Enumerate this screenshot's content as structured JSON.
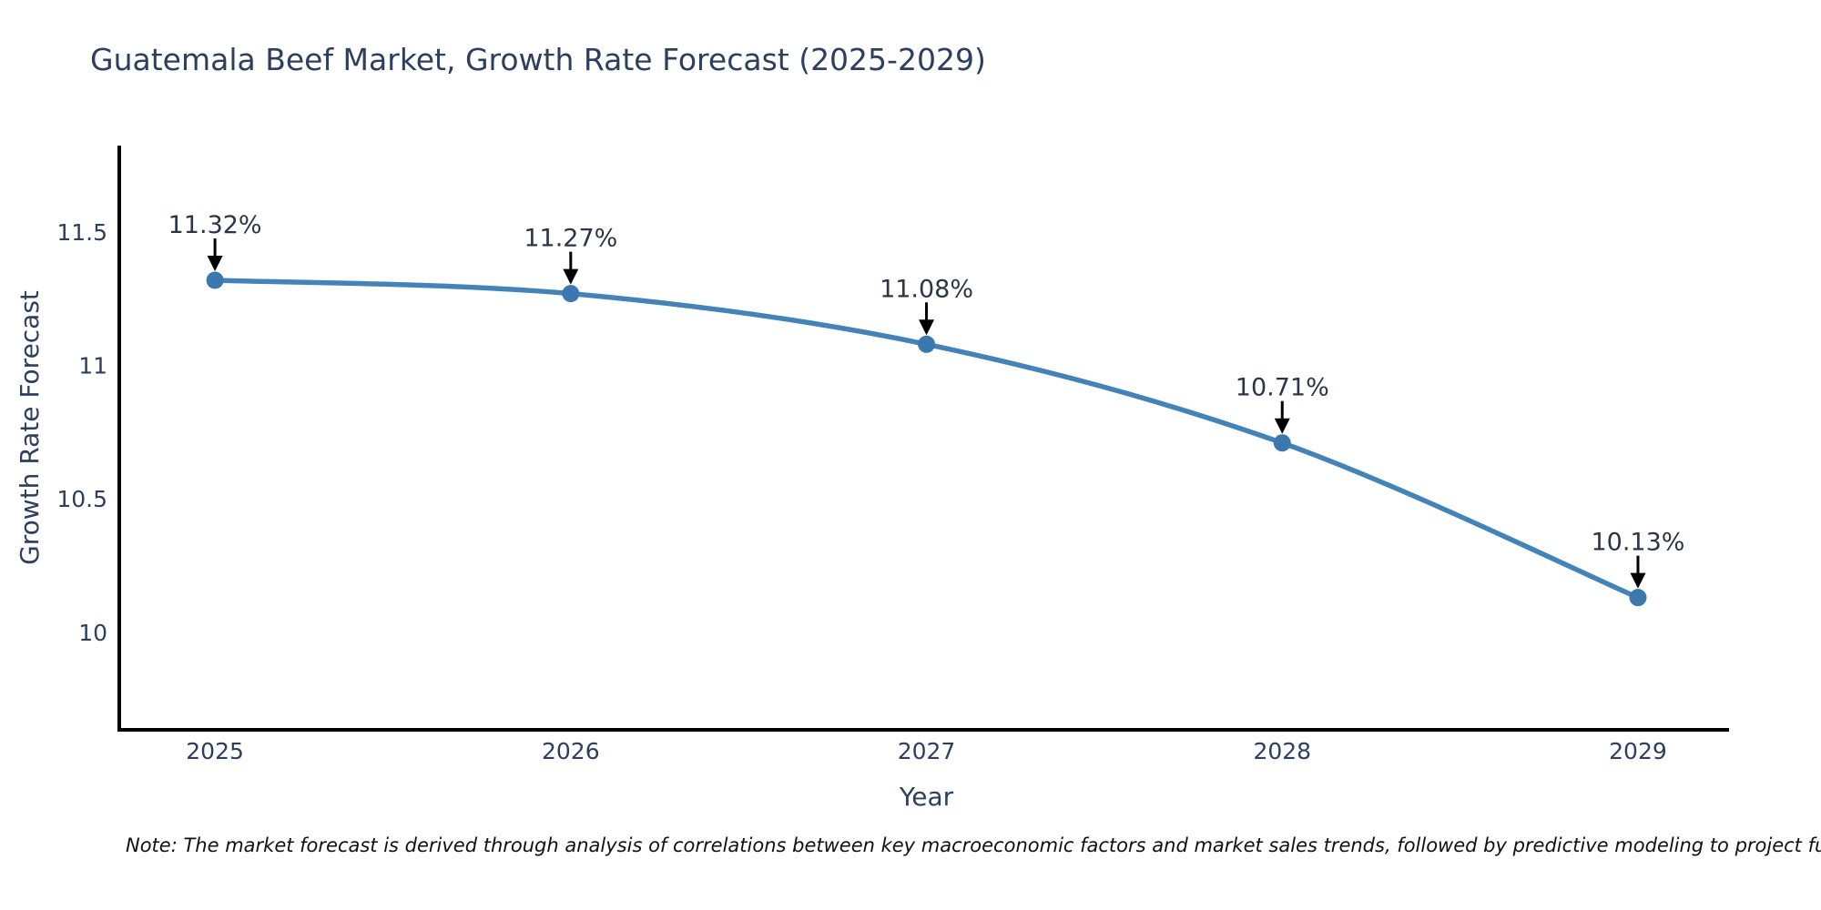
{
  "title": "Guatemala Beef Market, Growth Rate Forecast (2025-2029)",
  "note": "Note: The market forecast is derived through analysis of correlations between key macroeconomic factors and market sales trends, followed by predictive modeling to project future sal",
  "chart_data": {
    "type": "line",
    "title": "Guatemala Beef Market, Growth Rate Forecast (2025-2029)",
    "xlabel": "Year",
    "ylabel": "Growth Rate Forecast",
    "x": [
      2025,
      2026,
      2027,
      2028,
      2029
    ],
    "series": [
      {
        "name": "Growth Rate Forecast",
        "values": [
          11.32,
          11.27,
          11.08,
          10.71,
          10.13
        ]
      }
    ],
    "point_labels": [
      "11.32%",
      "11.27%",
      "11.08%",
      "10.71%",
      "10.13%"
    ],
    "x_ticks": [
      "2025",
      "2026",
      "2027",
      "2028",
      "2029"
    ],
    "y_ticks": [
      11.5,
      11,
      10.5,
      10
    ],
    "xlim": [
      2024.731,
      2029.256
    ],
    "ylim": [
      9.634,
      11.825
    ],
    "grid": false,
    "legend_position": "none",
    "line_shape": "spline",
    "annotation_style": "label-above-with-down-arrow",
    "colors": {
      "line": "#4483b7",
      "marker": "#3a78ae",
      "arrow": "#000000",
      "axis_line": "#000000",
      "tick_text": "#2d3f5e",
      "axis_title_text": "#2d3f5e",
      "annotation_text": "#2a3548",
      "note_text": "#111111",
      "background": "#ffffff"
    }
  }
}
